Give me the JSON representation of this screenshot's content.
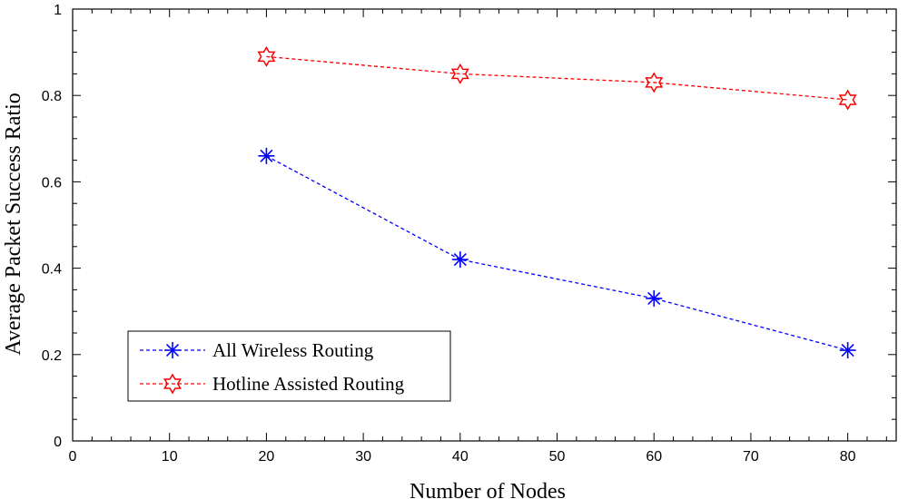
{
  "chart_data": {
    "type": "line",
    "title": "",
    "xlabel": "Number of Nodes",
    "ylabel": "Average Packet Success Ratio",
    "xlim": [
      0,
      85
    ],
    "ylim": [
      0,
      1
    ],
    "xticks": [
      0,
      10,
      20,
      30,
      40,
      50,
      60,
      70,
      80
    ],
    "xtick_labels": [
      "0",
      "10",
      "20",
      "30",
      "40",
      "50",
      "60",
      "70",
      "80"
    ],
    "yticks": [
      0,
      0.2,
      0.4,
      0.6,
      0.8,
      1
    ],
    "ytick_labels": [
      "0",
      "0.2",
      "0.4",
      "0.6",
      "0.8",
      "1"
    ],
    "grid": false,
    "legend_position": "bottom-left",
    "x": [
      20,
      40,
      60,
      80
    ],
    "series": [
      {
        "name": "All Wireless Routing",
        "values": [
          0.66,
          0.42,
          0.33,
          0.21
        ],
        "color": "#0000ff",
        "marker": "asterisk",
        "line_style": "dashed"
      },
      {
        "name": "Hotline Assisted Routing",
        "values": [
          0.89,
          0.85,
          0.83,
          0.79
        ],
        "color": "#ff0000",
        "marker": "hexagram",
        "line_style": "dashed"
      }
    ]
  }
}
